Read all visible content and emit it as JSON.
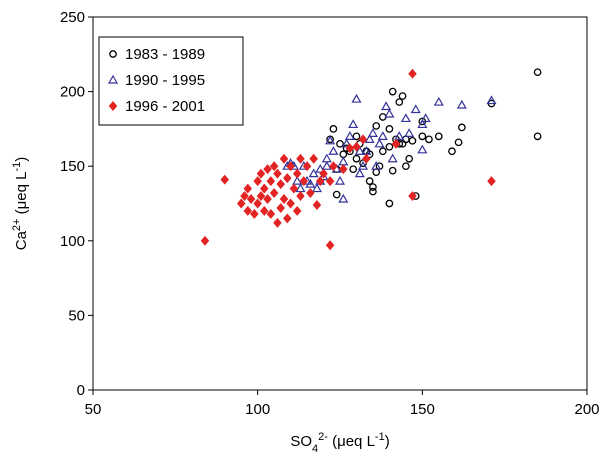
{
  "chart_data": {
    "type": "scatter",
    "xlabel": [
      {
        "text": "SO"
      },
      {
        "text": "4",
        "script": "sub"
      },
      {
        "text": "2-",
        "script": "sup"
      },
      {
        "text": " (μeq L"
      },
      {
        "text": "-1",
        "script": "sup"
      },
      {
        "text": ")"
      }
    ],
    "ylabel": [
      {
        "text": "Ca"
      },
      {
        "text": "2+",
        "script": "sup"
      },
      {
        "text": " (μeq L"
      },
      {
        "text": "-1",
        "script": "sup"
      },
      {
        "text": ")"
      }
    ],
    "xlim": [
      50,
      200
    ],
    "xticks": [
      50,
      100,
      150,
      200
    ],
    "ylim": [
      0,
      250
    ],
    "yticks": [
      0,
      50,
      100,
      150,
      200,
      250
    ],
    "legend": "upper left",
    "series": [
      {
        "name": "1983 - 1989",
        "color": "#000000",
        "marker": "circle",
        "x": [
          185,
          185,
          171,
          162,
          161,
          159,
          155,
          152,
          150,
          150,
          146,
          147,
          145,
          144,
          143,
          142,
          141,
          143,
          144,
          140,
          140,
          140,
          138,
          138,
          137,
          136,
          135,
          135,
          134,
          133,
          132,
          131,
          130,
          130,
          129,
          128,
          127,
          126,
          125,
          124,
          123,
          122,
          124,
          134,
          136,
          141,
          145,
          148
        ],
        "values": [
          213,
          170,
          192,
          176,
          166,
          160,
          170,
          168,
          170,
          180,
          155,
          167,
          168,
          165,
          165,
          168,
          200,
          193,
          197,
          175,
          163,
          125,
          183,
          160,
          150,
          146,
          133,
          136,
          158,
          160,
          152,
          165,
          170,
          155,
          148,
          160,
          162,
          158,
          165,
          148,
          175,
          168,
          131,
          140,
          177,
          147,
          150,
          130
        ]
      },
      {
        "name": "1990 - 1995",
        "color": "#33339a",
        "marker": "triangle",
        "x": [
          171,
          162,
          155,
          151,
          150,
          150,
          148,
          146,
          145,
          143,
          141,
          140,
          139,
          138,
          137,
          135,
          134,
          133,
          132,
          131,
          130,
          129,
          128,
          127,
          126,
          125,
          124,
          123,
          122,
          121,
          120,
          119,
          118,
          117,
          116,
          115,
          114,
          113,
          112,
          111,
          110,
          109,
          121,
          126,
          119,
          131,
          136
        ],
        "values": [
          194,
          191,
          193,
          182,
          178,
          161,
          188,
          172,
          182,
          170,
          155,
          185,
          190,
          170,
          165,
          172,
          168,
          160,
          150,
          145,
          195,
          178,
          170,
          165,
          153,
          140,
          148,
          160,
          167,
          155,
          143,
          140,
          135,
          145,
          138,
          140,
          150,
          135,
          140,
          150,
          152,
          150,
          150,
          128,
          148,
          160,
          150
        ]
      },
      {
        "name": "1996 - 2001",
        "color": "#e32424",
        "marker": "diamond",
        "x": [
          84,
          90,
          95,
          96,
          97,
          97,
          98,
          99,
          100,
          100,
          101,
          101,
          102,
          102,
          103,
          103,
          104,
          104,
          105,
          105,
          106,
          106,
          107,
          107,
          108,
          108,
          109,
          109,
          110,
          110,
          111,
          112,
          112,
          113,
          113,
          114,
          115,
          116,
          117,
          118,
          119,
          120,
          122,
          122,
          123,
          126,
          128,
          130,
          132,
          133,
          142,
          147,
          147,
          171
        ],
        "values": [
          100,
          141,
          125,
          130,
          120,
          135,
          128,
          118,
          140,
          125,
          130,
          145,
          135,
          120,
          148,
          128,
          140,
          118,
          150,
          132,
          145,
          112,
          138,
          122,
          155,
          128,
          142,
          115,
          150,
          125,
          135,
          145,
          120,
          155,
          130,
          140,
          150,
          132,
          155,
          124,
          140,
          145,
          140,
          97,
          150,
          148,
          162,
          163,
          168,
          155,
          165,
          130,
          212,
          140
        ]
      }
    ]
  }
}
